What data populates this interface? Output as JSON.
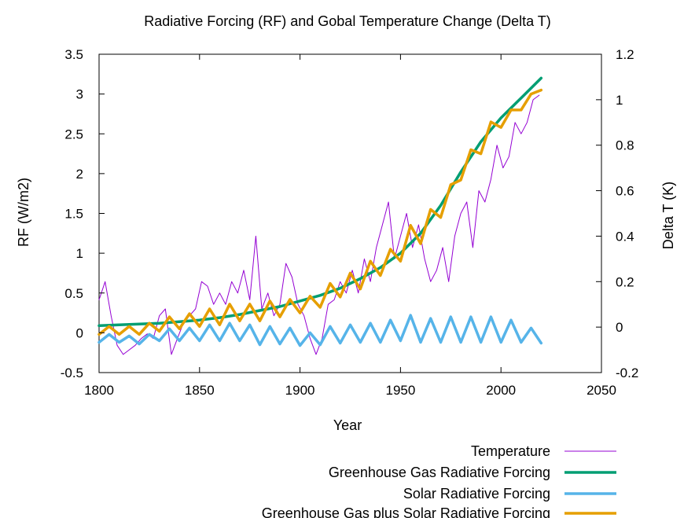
{
  "chart_data": {
    "type": "line",
    "title": "Radiative Forcing (RF) and Gobal Temperature Change (Delta T)",
    "xlabel": "Year",
    "ylabel": "RF (W/m2)",
    "y2label": "Delta T (K)",
    "xlim": [
      1800,
      2050
    ],
    "ylim": [
      -0.5,
      3.5
    ],
    "y2lim": [
      -0.2,
      1.2
    ],
    "xticks": [
      "1800",
      "1850",
      "1900",
      "1950",
      "2000",
      "2050"
    ],
    "yticks": [
      "-0.5",
      "0",
      "0.5",
      "1",
      "1.5",
      "2",
      "2.5",
      "3",
      "3.5"
    ],
    "y2ticks": [
      "-0.2",
      "0",
      "0.2",
      "0.4",
      "0.6",
      "0.8",
      "1",
      "1.2"
    ],
    "grid": false,
    "legend_position": "bottom-right",
    "series": [
      {
        "name": "Temperature",
        "axis": "y2",
        "color": "#9400d3",
        "x": [
          1800,
          1803,
          1806,
          1809,
          1812,
          1815,
          1818,
          1821,
          1824,
          1827,
          1830,
          1833,
          1836,
          1839,
          1842,
          1845,
          1848,
          1851,
          1854,
          1857,
          1860,
          1863,
          1866,
          1869,
          1872,
          1875,
          1878,
          1881,
          1884,
          1887,
          1890,
          1893,
          1896,
          1899,
          1902,
          1905,
          1908,
          1911,
          1914,
          1917,
          1920,
          1923,
          1926,
          1929,
          1932,
          1935,
          1938,
          1941,
          1944,
          1947,
          1950,
          1953,
          1956,
          1959,
          1962,
          1965,
          1968,
          1971,
          1974,
          1977,
          1980,
          1983,
          1986,
          1989,
          1992,
          1995,
          1998,
          2001,
          2004,
          2007,
          2010,
          2013,
          2016,
          2019
        ],
        "values": [
          0.12,
          0.2,
          0.05,
          -0.08,
          -0.12,
          -0.1,
          -0.08,
          -0.05,
          -0.03,
          -0.05,
          0.05,
          0.08,
          -0.12,
          -0.05,
          0.02,
          0.05,
          0.08,
          0.2,
          0.18,
          0.1,
          0.15,
          0.1,
          0.2,
          0.15,
          0.25,
          0.12,
          0.4,
          0.08,
          0.15,
          0.05,
          0.1,
          0.28,
          0.22,
          0.1,
          0.05,
          -0.05,
          -0.12,
          -0.05,
          0.1,
          0.12,
          0.2,
          0.15,
          0.25,
          0.15,
          0.3,
          0.2,
          0.35,
          0.45,
          0.55,
          0.3,
          0.4,
          0.5,
          0.35,
          0.45,
          0.3,
          0.2,
          0.25,
          0.35,
          0.2,
          0.4,
          0.5,
          0.55,
          0.35,
          0.6,
          0.55,
          0.65,
          0.8,
          0.7,
          0.75,
          0.9,
          0.85,
          0.9,
          1.0,
          1.02
        ]
      },
      {
        "name": "Greenhouse Gas Radiative Forcing",
        "axis": "y",
        "color": "#009e73",
        "x": [
          1800,
          1810,
          1820,
          1830,
          1840,
          1850,
          1860,
          1870,
          1880,
          1890,
          1900,
          1910,
          1920,
          1930,
          1940,
          1950,
          1960,
          1970,
          1980,
          1990,
          2000,
          2010,
          2020
        ],
        "values": [
          0.09,
          0.1,
          0.11,
          0.12,
          0.14,
          0.16,
          0.19,
          0.23,
          0.28,
          0.33,
          0.4,
          0.47,
          0.56,
          0.68,
          0.82,
          1.0,
          1.25,
          1.6,
          2.02,
          2.4,
          2.7,
          2.95,
          3.2
        ]
      },
      {
        "name": "Solar Radiative Forcing",
        "axis": "y",
        "color": "#56b4e9",
        "x": [
          1800,
          1805,
          1810,
          1815,
          1820,
          1825,
          1830,
          1835,
          1840,
          1845,
          1850,
          1855,
          1860,
          1865,
          1870,
          1875,
          1880,
          1885,
          1890,
          1895,
          1900,
          1905,
          1910,
          1915,
          1920,
          1925,
          1930,
          1935,
          1940,
          1945,
          1950,
          1955,
          1960,
          1965,
          1970,
          1975,
          1980,
          1985,
          1990,
          1995,
          2000,
          2005,
          2010,
          2015,
          2020
        ],
        "values": [
          -0.12,
          -0.02,
          -0.12,
          -0.04,
          -0.14,
          -0.02,
          -0.1,
          0.05,
          -0.1,
          0.06,
          -0.1,
          0.1,
          -0.1,
          0.12,
          -0.1,
          0.1,
          -0.15,
          0.08,
          -0.14,
          0.06,
          -0.16,
          0.0,
          -0.15,
          0.08,
          -0.13,
          0.1,
          -0.12,
          0.12,
          -0.12,
          0.16,
          -0.1,
          0.22,
          -0.12,
          0.18,
          -0.12,
          0.2,
          -0.12,
          0.2,
          -0.12,
          0.2,
          -0.12,
          0.16,
          -0.12,
          0.06,
          -0.13
        ]
      },
      {
        "name": "Greenhouse Gas plus Solar Radiative Forcing",
        "axis": "y",
        "color": "#e69f00",
        "x": [
          1800,
          1805,
          1810,
          1815,
          1820,
          1825,
          1830,
          1835,
          1840,
          1845,
          1850,
          1855,
          1860,
          1865,
          1870,
          1875,
          1880,
          1885,
          1890,
          1895,
          1900,
          1905,
          1910,
          1915,
          1920,
          1925,
          1930,
          1935,
          1940,
          1945,
          1950,
          1955,
          1960,
          1965,
          1970,
          1975,
          1980,
          1985,
          1990,
          1995,
          2000,
          2005,
          2010,
          2015,
          2020
        ],
        "values": [
          -0.02,
          0.08,
          -0.02,
          0.08,
          -0.02,
          0.12,
          0.02,
          0.2,
          0.05,
          0.24,
          0.08,
          0.3,
          0.1,
          0.36,
          0.15,
          0.36,
          0.15,
          0.4,
          0.2,
          0.42,
          0.25,
          0.46,
          0.32,
          0.62,
          0.45,
          0.75,
          0.55,
          0.9,
          0.72,
          1.05,
          0.9,
          1.35,
          1.12,
          1.55,
          1.45,
          1.86,
          1.92,
          2.3,
          2.25,
          2.65,
          2.58,
          2.8,
          2.8,
          3.0,
          3.05
        ]
      }
    ]
  }
}
